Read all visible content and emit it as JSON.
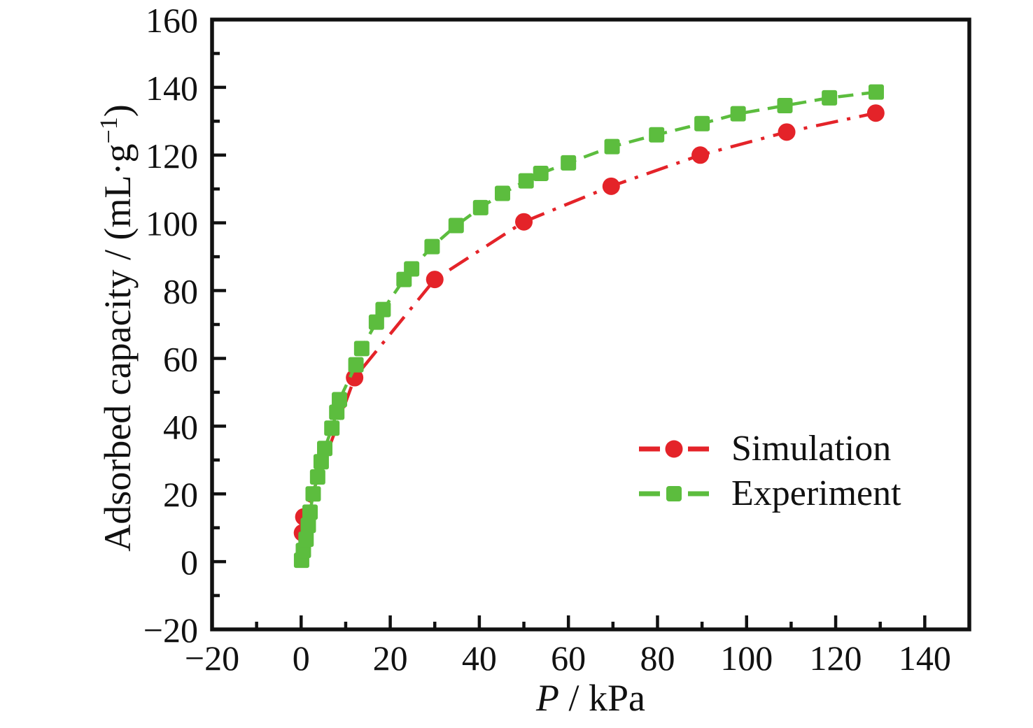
{
  "figure": {
    "background_color": "#ffffff",
    "axis_color": "#111111"
  },
  "chart_data": {
    "type": "line",
    "title": "",
    "xlabel_var": "P",
    "xlabel_rest": " / kPa",
    "ylabel_pre": "Adsorbed capacity / (mL·g",
    "ylabel_sup": "−1",
    "ylabel_post": ")",
    "x_range": [
      -20,
      150
    ],
    "y_range": [
      -20,
      160
    ],
    "x_major_ticks": [
      -20,
      0,
      20,
      40,
      60,
      80,
      100,
      120,
      140
    ],
    "y_major_ticks": [
      -20,
      0,
      20,
      40,
      60,
      80,
      100,
      120,
      140,
      160
    ],
    "minor_tick_step": 10,
    "grid": false,
    "legend_position": "right-center",
    "series": [
      {
        "name": "Simulation",
        "color": "#e42329",
        "marker": "circle",
        "line_style": "dash-dot",
        "points": [
          [
            0.3,
            8.5
          ],
          [
            0.6,
            13.2
          ],
          [
            12,
            54.3
          ],
          [
            30,
            83.3
          ],
          [
            50,
            100.3
          ],
          [
            69.6,
            110.8
          ],
          [
            89.6,
            120.0
          ],
          [
            109,
            126.8
          ],
          [
            129,
            132.4
          ]
        ]
      },
      {
        "name": "Experiment",
        "color": "#5cbd3e",
        "marker": "square",
        "line_style": "dashed",
        "points": [
          [
            0.1,
            0.4
          ],
          [
            0.5,
            3.3
          ],
          [
            1.1,
            6.6
          ],
          [
            1.6,
            10.7
          ],
          [
            2.0,
            14.6
          ],
          [
            2.7,
            20.0
          ],
          [
            3.7,
            25.0
          ],
          [
            4.5,
            29.5
          ],
          [
            5.3,
            33.4
          ],
          [
            6.9,
            39.4
          ],
          [
            8.0,
            44.1
          ],
          [
            8.6,
            47.8
          ],
          [
            12.3,
            58.1
          ],
          [
            13.6,
            62.9
          ],
          [
            16.9,
            70.7
          ],
          [
            18.4,
            74.4
          ],
          [
            23.1,
            83.3
          ],
          [
            24.8,
            86.4
          ],
          [
            29.4,
            93.0
          ],
          [
            34.8,
            99.2
          ],
          [
            40.3,
            104.5
          ],
          [
            45.2,
            108.7
          ],
          [
            50.5,
            112.4
          ],
          [
            53.8,
            114.6
          ],
          [
            60.0,
            117.7
          ],
          [
            69.8,
            122.5
          ],
          [
            79.8,
            126.0
          ],
          [
            90.0,
            129.3
          ],
          [
            98.1,
            132.2
          ],
          [
            108.6,
            134.6
          ],
          [
            118.6,
            136.9
          ],
          [
            129.1,
            138.6
          ]
        ]
      }
    ]
  }
}
